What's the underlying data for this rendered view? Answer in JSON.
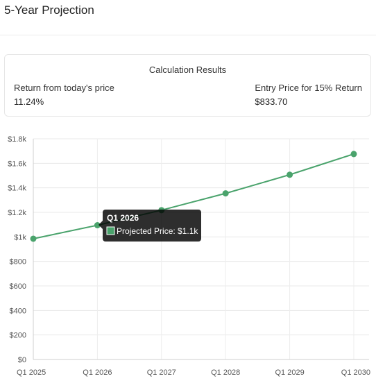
{
  "page": {
    "title": "5-Year Projection"
  },
  "results": {
    "title": "Calculation Results",
    "return_label": "Return from today's price",
    "return_value": "11.24%",
    "entry_label": "Entry Price for 15% Return",
    "entry_value": "$833.70"
  },
  "chart_data": {
    "type": "line",
    "categories": [
      "Q1 2025",
      "Q1 2026",
      "Q1 2027",
      "Q1 2028",
      "Q1 2029",
      "Q1 2030"
    ],
    "series": [
      {
        "name": "Projected Price",
        "color": "#4aa36c",
        "values": [
          985,
          1095,
          1218,
          1355,
          1507,
          1676
        ]
      }
    ],
    "ylim": [
      0,
      1800
    ],
    "y_ticks": [
      0,
      200,
      400,
      600,
      800,
      1000,
      1200,
      1400,
      1600,
      1800
    ],
    "y_tick_labels": [
      "$0",
      "$200",
      "$400",
      "$600",
      "$800",
      "$1k",
      "$1.2k",
      "$1.4k",
      "$1.6k",
      "$1.8k"
    ],
    "grid": true,
    "tooltip": {
      "category": "Q1 2026",
      "series_label": "Projected Price",
      "value_label": "Projected Price: $1.1k",
      "swatch_color": "#4aa36c"
    }
  }
}
